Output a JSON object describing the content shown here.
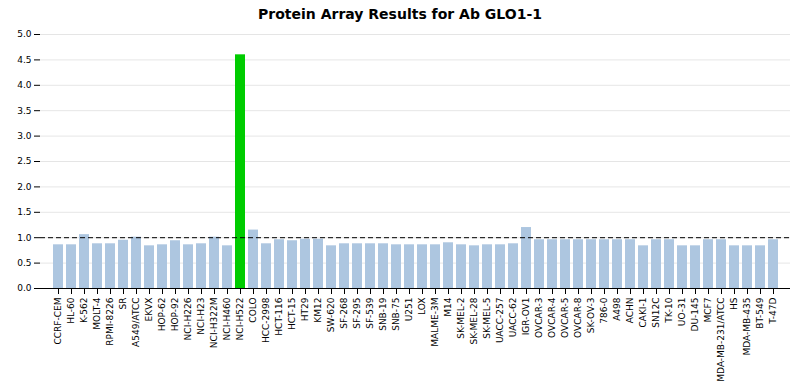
{
  "chart_data": {
    "type": "bar",
    "title": "Protein Array Results for Ab GLO1-1",
    "categories": [
      "CCRF-CEM",
      "HL-60",
      "K-562",
      "MOLT-4",
      "RPMI-8226",
      "SR",
      "A549/ATCC",
      "EKVX",
      "HOP-62",
      "HOP-92",
      "NCI-H226",
      "NCI-H23",
      "NCI-H322M",
      "NCI-H460",
      "NCI-H522",
      "COLO",
      "HCC-2998",
      "HCT-116",
      "HCT-15",
      "HT29",
      "KM12",
      "SW-620",
      "SF-268",
      "SF-295",
      "SF-539",
      "SNB-19",
      "SNB-75",
      "U251",
      "LOX",
      "MALME-3M",
      "M14",
      "SK-MEL-2",
      "SK-MEL-28",
      "SK-MEL-5",
      "UACC-257",
      "UACC-62",
      "IGR-OV1",
      "OVCAR-3",
      "OVCAR-4",
      "OVCAR-5",
      "OVCAR-8",
      "SK-OV-3",
      "786-0",
      "A498",
      "ACHN",
      "CAKI-1",
      "SN12C",
      "TK-10",
      "UO-31",
      "DU-145",
      "MCF7",
      "MDA-MB-231/ATCC",
      "HS",
      "MDA-MB-435",
      "BT-549",
      "T-47D"
    ],
    "values": [
      0.86,
      0.86,
      1.06,
      0.88,
      0.88,
      0.95,
      1.01,
      0.84,
      0.86,
      0.94,
      0.86,
      0.88,
      1.01,
      0.84,
      4.6,
      1.15,
      0.88,
      0.96,
      0.94,
      0.97,
      0.97,
      0.84,
      0.88,
      0.88,
      0.88,
      0.88,
      0.86,
      0.86,
      0.86,
      0.86,
      0.9,
      0.86,
      0.84,
      0.86,
      0.86,
      0.88,
      1.2,
      0.96,
      0.96,
      0.96,
      0.96,
      0.96,
      0.96,
      0.96,
      0.96,
      0.84,
      0.96,
      0.96,
      0.84,
      0.84,
      0.96,
      0.96,
      0.84,
      0.84,
      0.84,
      0.96
    ],
    "colors": [
      "#adc6e0",
      "#adc6e0",
      "#adc6e0",
      "#adc6e0",
      "#adc6e0",
      "#adc6e0",
      "#adc6e0",
      "#adc6e0",
      "#adc6e0",
      "#adc6e0",
      "#adc6e0",
      "#adc6e0",
      "#adc6e0",
      "#adc6e0",
      "#00cc00",
      "#adc6e0",
      "#adc6e0",
      "#adc6e0",
      "#adc6e0",
      "#adc6e0",
      "#adc6e0",
      "#adc6e0",
      "#adc6e0",
      "#adc6e0",
      "#adc6e0",
      "#adc6e0",
      "#adc6e0",
      "#adc6e0",
      "#adc6e0",
      "#adc6e0",
      "#adc6e0",
      "#adc6e0",
      "#adc6e0",
      "#adc6e0",
      "#adc6e0",
      "#adc6e0",
      "#adc6e0",
      "#adc6e0",
      "#adc6e0",
      "#adc6e0",
      "#adc6e0",
      "#adc6e0",
      "#adc6e0",
      "#adc6e0",
      "#adc6e0",
      "#adc6e0",
      "#adc6e0",
      "#adc6e0",
      "#adc6e0",
      "#adc6e0",
      "#adc6e0",
      "#adc6e0",
      "#adc6e0",
      "#adc6e0",
      "#adc6e0",
      "#adc6e0"
    ],
    "ylim": [
      0.0,
      5.0
    ],
    "yticks": [
      {
        "value": 0,
        "label": "0.0"
      },
      0.5,
      {
        "value": 1,
        "label": "1.0"
      },
      1.5,
      {
        "value": 2,
        "label": "2.0"
      },
      2.5,
      {
        "value": 3,
        "label": "3.0"
      },
      3.5,
      {
        "value": 4,
        "label": "4.0"
      },
      4.5,
      {
        "value": 5,
        "label": "5.0"
      }
    ],
    "reference_line": 1.0,
    "grid": true
  }
}
